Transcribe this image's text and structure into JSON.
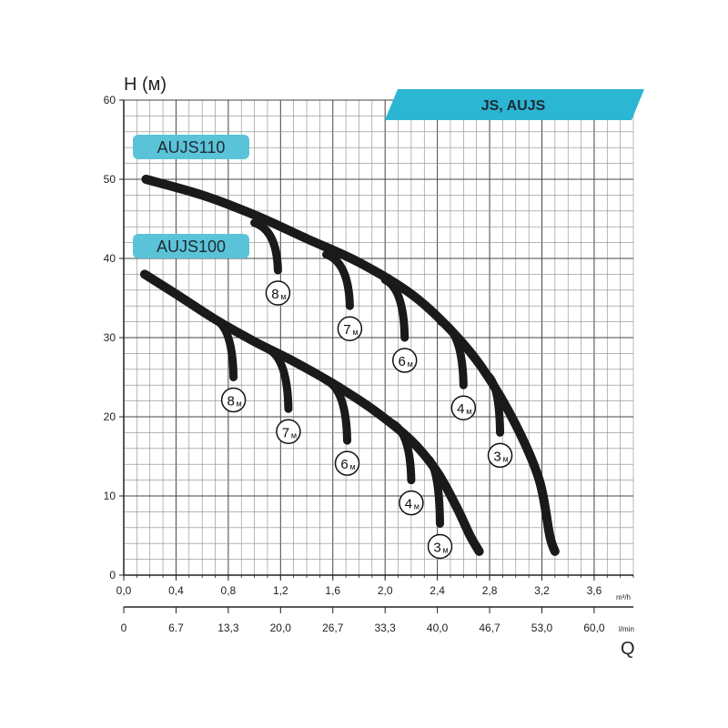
{
  "chart_data": {
    "type": "line",
    "title": "JS, AUJS",
    "ylabel": "H (м)",
    "xlabel": "Q",
    "ylim": [
      0,
      60
    ],
    "xlim": [
      0,
      3.9
    ],
    "grid": true,
    "y_ticks": [
      "0",
      "10",
      "20",
      "30",
      "40",
      "50",
      "60"
    ],
    "x_ticks_primary": {
      "unit": "m³/h",
      "labels": [
        "0,0",
        "0,4",
        "0,8",
        "1,2",
        "1,6",
        "2,0",
        "2,4",
        "2,8",
        "3,2",
        "3,6"
      ]
    },
    "x_ticks_secondary": {
      "unit": "l/min",
      "labels": [
        "0",
        "6.7",
        "13,3",
        "20,0",
        "26,7",
        "33,3",
        "40,0",
        "46,7",
        "53,0",
        "60,0"
      ]
    },
    "series": [
      {
        "name": "AUJS110",
        "color": "#1a1a1a",
        "points": [
          [
            0.17,
            50
          ],
          [
            0.6,
            48
          ],
          [
            1.0,
            45.5
          ],
          [
            1.4,
            42.5
          ],
          [
            1.8,
            39.5
          ],
          [
            2.2,
            35.5
          ],
          [
            2.5,
            31
          ],
          [
            2.75,
            26
          ],
          [
            3.0,
            19
          ],
          [
            3.18,
            12
          ],
          [
            3.26,
            5
          ],
          [
            3.3,
            3
          ]
        ],
        "suction_drops": [
          {
            "label": "8",
            "unit": "м",
            "x_start": 1.0,
            "y_start": 44.5,
            "x_end": 1.18,
            "y_end": 38.5
          },
          {
            "label": "7",
            "unit": "м",
            "x_start": 1.55,
            "y_start": 40.5,
            "x_end": 1.73,
            "y_end": 34
          },
          {
            "label": "6",
            "unit": "м",
            "x_start": 2.0,
            "y_start": 37.3,
            "x_end": 2.15,
            "y_end": 30
          },
          {
            "label": "4",
            "unit": "м",
            "x_start": 2.43,
            "y_start": 32,
            "x_end": 2.6,
            "y_end": 24
          },
          {
            "label": "3",
            "unit": "м",
            "x_start": 2.78,
            "y_start": 25.3,
            "x_end": 2.88,
            "y_end": 18
          }
        ]
      },
      {
        "name": "AUJS100",
        "color": "#1a1a1a",
        "points": [
          [
            0.16,
            38
          ],
          [
            0.4,
            35.5
          ],
          [
            0.7,
            32.3
          ],
          [
            1.0,
            29.5
          ],
          [
            1.3,
            27
          ],
          [
            1.6,
            24.2
          ],
          [
            1.9,
            21
          ],
          [
            2.2,
            17
          ],
          [
            2.4,
            13
          ],
          [
            2.55,
            8.5
          ],
          [
            2.65,
            5
          ],
          [
            2.72,
            3
          ]
        ],
        "suction_drops": [
          {
            "label": "8",
            "unit": "м",
            "x_start": 0.7,
            "y_start": 32.3,
            "x_end": 0.84,
            "y_end": 25
          },
          {
            "label": "7",
            "unit": "м",
            "x_start": 1.1,
            "y_start": 28.6,
            "x_end": 1.26,
            "y_end": 21
          },
          {
            "label": "6",
            "unit": "м",
            "x_start": 1.55,
            "y_start": 24.6,
            "x_end": 1.71,
            "y_end": 17
          },
          {
            "label": "4",
            "unit": "м",
            "x_start": 2.05,
            "y_start": 19.2,
            "x_end": 2.2,
            "y_end": 12
          },
          {
            "label": "3",
            "unit": "м",
            "x_start": 2.33,
            "y_start": 14.7,
            "x_end": 2.42,
            "y_end": 6.5
          }
        ]
      }
    ],
    "legend_badges": [
      {
        "text": "AUJS110",
        "color": "#5bc3d8"
      },
      {
        "text": "AUJS100",
        "color": "#5bc3d8"
      }
    ],
    "header_banner": {
      "text": "JS, AUJS",
      "color": "#2bb6d3"
    }
  }
}
